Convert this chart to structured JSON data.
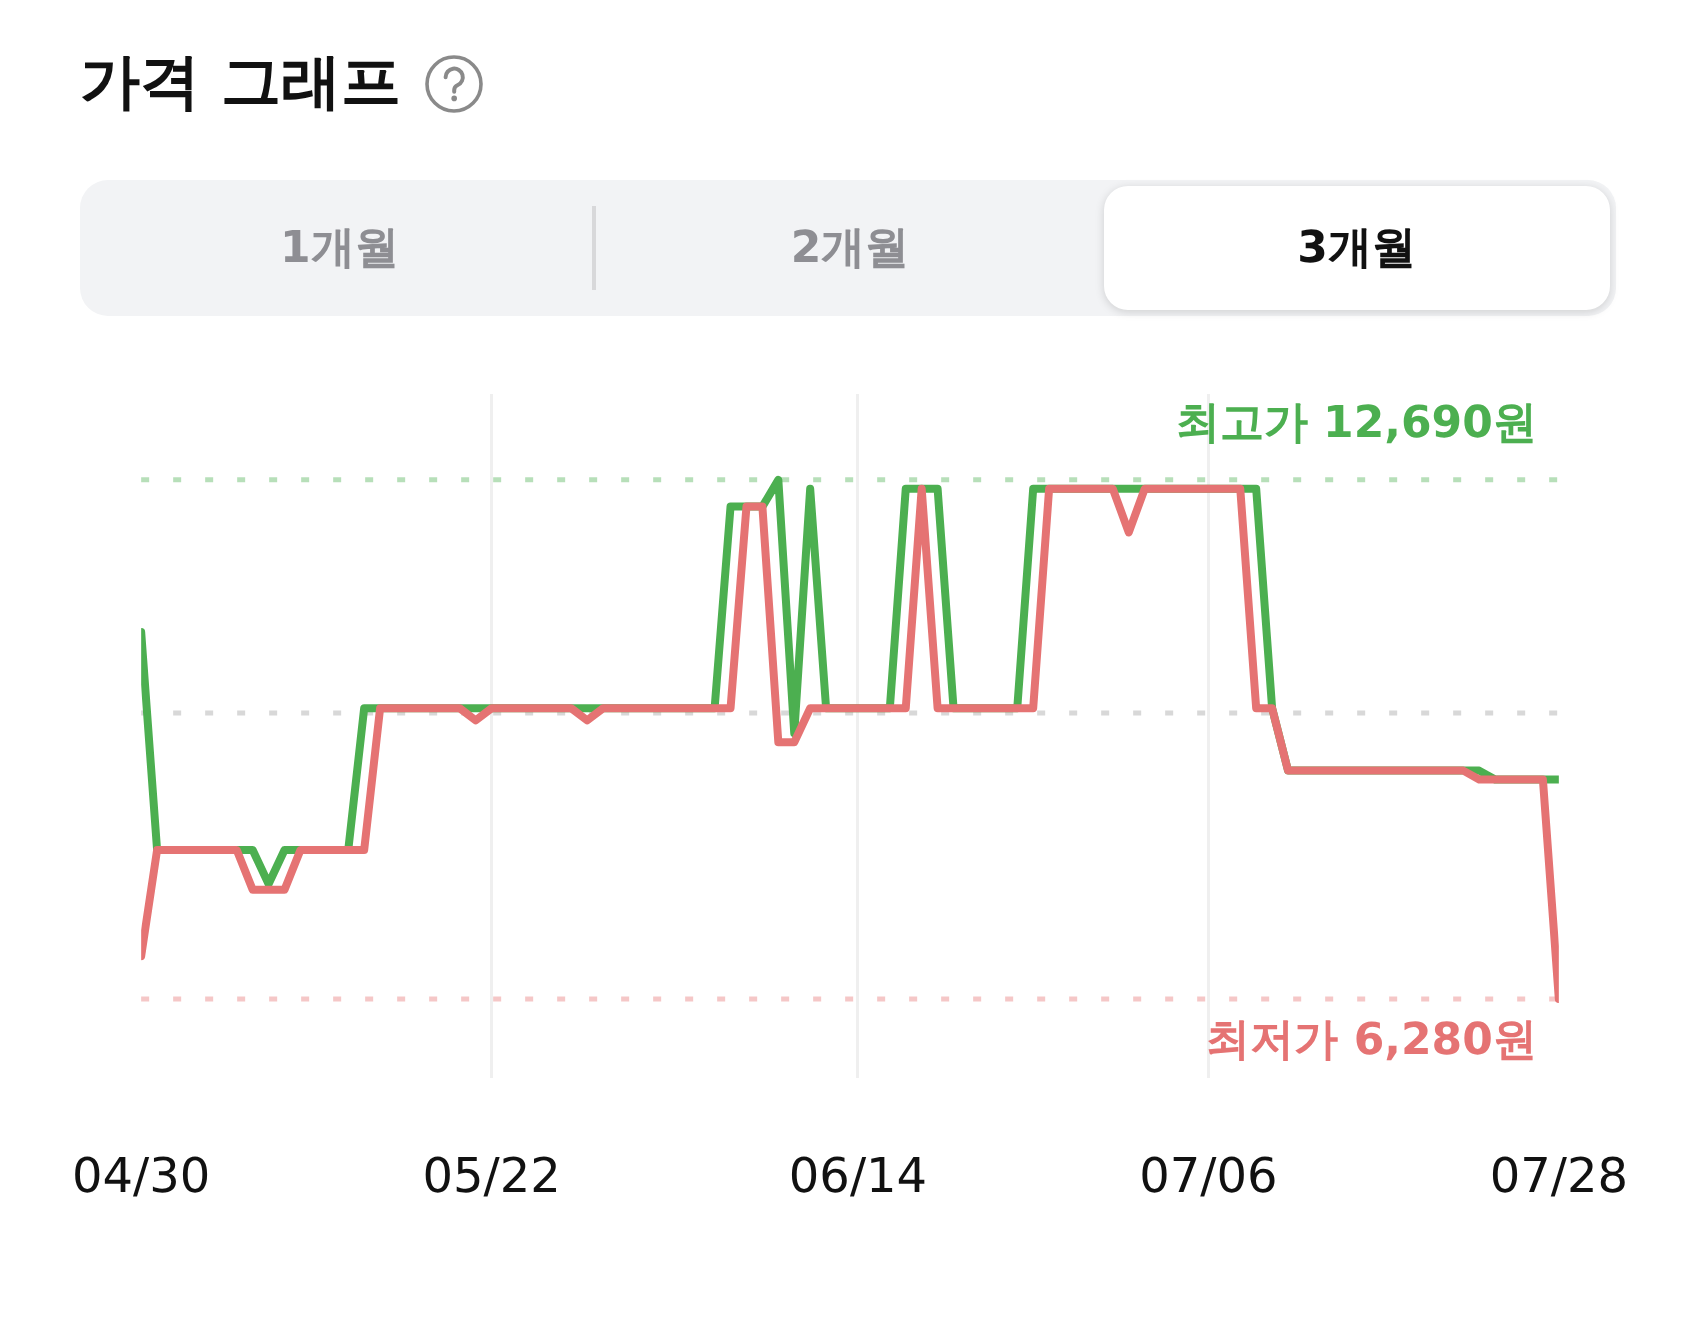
{
  "chart_data": {
    "type": "line",
    "title": "가격 그래프",
    "annotations": [
      "1개월",
      "2개월",
      "3개월"
    ],
    "series": [
      {
        "color": "#4caf50",
        "x": [
          "--04-30",
          "--05-01",
          "--05-07",
          "--05-08",
          "--05-09",
          "--05-13",
          "--05-14",
          "--06-05",
          "--06-06",
          "--06-08",
          "--06-09",
          "--06-10",
          "--06-11",
          "--06-12",
          "--06-16",
          "--06-17",
          "--06-19",
          "--06-20",
          "--06-24",
          "--06-25",
          "--07-09",
          "--07-10",
          "--07-11",
          "--07-23",
          "--07-24",
          "--07-28"
        ],
        "values": [
          10810,
          8120,
          8120,
          7700,
          8120,
          8120,
          9870,
          9870,
          12360,
          12360,
          12690,
          9560,
          12580,
          9870,
          9870,
          12580,
          12580,
          9870,
          9870,
          12580,
          12580,
          9870,
          9100,
          9100,
          8990,
          8990
        ]
      },
      {
        "color": "#e57373",
        "x": [
          "--04-30",
          "--05-01",
          "--05-06",
          "--05-07",
          "--05-09",
          "--05-10",
          "--05-14",
          "--05-15",
          "--05-20",
          "--05-21",
          "--05-22",
          "--05-27",
          "--05-28",
          "--05-29",
          "--06-06",
          "--06-07",
          "--06-08",
          "--06-09",
          "--06-10",
          "--06-11",
          "--06-17",
          "--06-18",
          "--06-19",
          "--06-25",
          "--06-26",
          "--06-30",
          "--07-01",
          "--07-02",
          "--07-08",
          "--07-09",
          "--07-10",
          "--07-11",
          "--07-22",
          "--07-23",
          "--07-27",
          "--07-28"
        ],
        "values": [
          6810,
          8120,
          8120,
          7630,
          7630,
          8120,
          8120,
          9870,
          9870,
          9720,
          9870,
          9870,
          9720,
          9870,
          9870,
          12360,
          12360,
          9450,
          9450,
          9870,
          9870,
          12580,
          9870,
          9870,
          12580,
          12580,
          12040,
          12580,
          12580,
          9870,
          9870,
          9100,
          9100,
          8990,
          8990,
          6280
        ]
      }
    ],
    "xlim": [
      "--04-30",
      "--07-28"
    ],
    "xticks": [
      {
        "value": "--04-30",
        "label": "04/30"
      },
      {
        "value": "--05-22",
        "label": "05/22"
      },
      {
        "value": "--06-14",
        "label": "06/14"
      },
      {
        "value": "--07-06",
        "label": "07/06"
      },
      {
        "value": "--07-28",
        "label": "07/28"
      }
    ],
    "ylim": [
      5300,
      13750
    ],
    "tick_labels": "x",
    "grid": "x",
    "ref_lines": [
      {
        "axis": "y",
        "value": 12690,
        "label": "최고가 12,690원",
        "color": "#4caf50",
        "line_style": "dotted"
      },
      {
        "axis": "y",
        "value": 9810,
        "color": "#9e9e9e",
        "line_style": "dotted"
      },
      {
        "axis": "y",
        "value": 6280,
        "label": "최저가 6,280원",
        "color": "#e57373",
        "line_style": "dotted"
      }
    ]
  }
}
